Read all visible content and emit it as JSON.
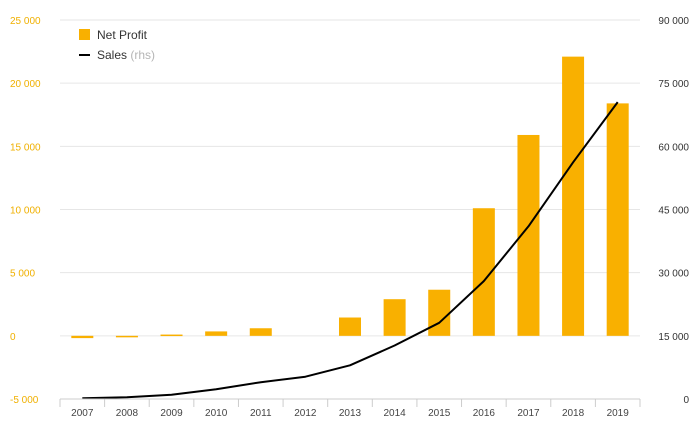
{
  "chart_data": {
    "type": "bar+line",
    "categories": [
      "2007",
      "2008",
      "2009",
      "2010",
      "2011",
      "2012",
      "2013",
      "2014",
      "2015",
      "2016",
      "2017",
      "2018",
      "2019"
    ],
    "series": [
      {
        "name": "Net Profit",
        "type": "bar",
        "axis": "left",
        "color": "#f9b000",
        "values": [
          -180,
          -100,
          100,
          350,
          600,
          0,
          1450,
          2900,
          3650,
          10100,
          15900,
          22100,
          18400
        ]
      },
      {
        "name": "Sales",
        "name_suffix": "(rhs)",
        "type": "line",
        "axis": "right",
        "color": "#000000",
        "values": [
          200,
          400,
          1000,
          2300,
          4000,
          5300,
          8000,
          12700,
          18100,
          28000,
          41000,
          56200,
          70500
        ]
      }
    ],
    "y_left": {
      "ylim": [
        -5000,
        25000
      ],
      "ticks": [
        -5000,
        0,
        5000,
        10000,
        15000,
        20000,
        25000
      ],
      "tick_labels": [
        "-5 000",
        "0",
        "5 000",
        "10 000",
        "15 000",
        "20 000",
        "25 000"
      ],
      "color": "#f0b000"
    },
    "y_right": {
      "ylim": [
        0,
        90000
      ],
      "ticks": [
        0,
        15000,
        30000,
        45000,
        60000,
        75000,
        90000
      ],
      "tick_labels": [
        "0",
        "15 000",
        "30 000",
        "45 000",
        "60 000",
        "75 000",
        "90 000"
      ]
    },
    "grid": true,
    "legend_position": "top-left"
  }
}
